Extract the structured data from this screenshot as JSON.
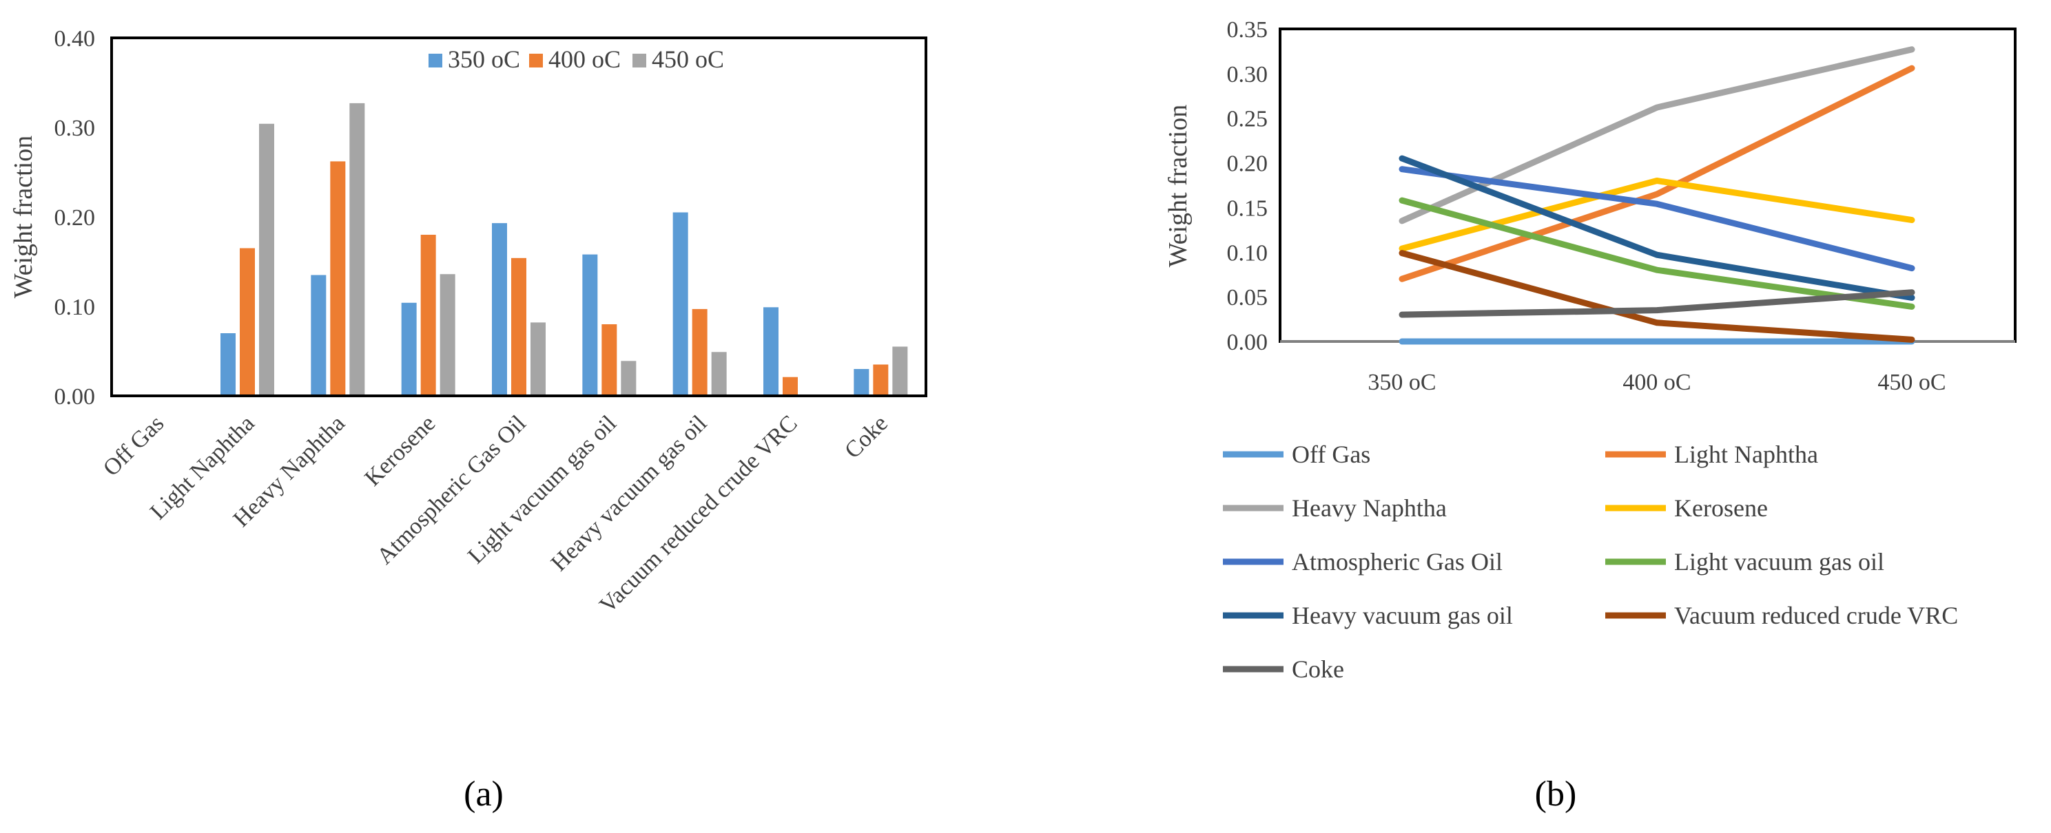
{
  "panel_labels": [
    "(a)",
    "(b)"
  ],
  "chart_data": [
    {
      "type": "bar",
      "panel": "(a)",
      "title": "",
      "xlabel": "",
      "ylabel": "Weight fraction",
      "ylim": [
        0,
        0.4
      ],
      "yticks": [
        "0.00",
        "0.10",
        "0.20",
        "0.30",
        "0.40"
      ],
      "legend_position": "top",
      "categories": [
        "Off Gas",
        "Light Naphtha",
        "Heavy Naphtha",
        "Kerosene",
        "Atmospheric Gas Oil",
        "Light vacuum gas oil",
        "Heavy vacuum gas oil",
        "Vacuum reduced crude VRC",
        "Coke"
      ],
      "series": [
        {
          "name": "350 oC",
          "color": "#5b9bd5",
          "values": [
            0.0,
            0.07,
            0.135,
            0.104,
            0.193,
            0.158,
            0.205,
            0.099,
            0.03
          ]
        },
        {
          "name": "400 oC",
          "color": "#ed7d31",
          "values": [
            0.0,
            0.165,
            0.262,
            0.18,
            0.154,
            0.08,
            0.097,
            0.021,
            0.035
          ]
        },
        {
          "name": "450 oC",
          "color": "#a5a5a5",
          "values": [
            0.0,
            0.304,
            0.327,
            0.136,
            0.082,
            0.039,
            0.049,
            0.0,
            0.055
          ]
        }
      ]
    },
    {
      "type": "line",
      "panel": "(b)",
      "title": "",
      "xlabel": "",
      "ylabel": "Weight fraction",
      "ylim": [
        0,
        0.35
      ],
      "yticks": [
        "0.00",
        "0.05",
        "0.10",
        "0.15",
        "0.20",
        "0.25",
        "0.30",
        "0.35"
      ],
      "legend_position": "bottom",
      "categories": [
        "350 oC",
        "400 oC",
        "450 oC"
      ],
      "series": [
        {
          "name": "Off Gas",
          "color": "#5b9bd5",
          "values": [
            0.0,
            0.0,
            0.0
          ]
        },
        {
          "name": "Light Naphtha",
          "color": "#ed7d31",
          "values": [
            0.07,
            0.165,
            0.306
          ]
        },
        {
          "name": "Heavy Naphtha",
          "color": "#a5a5a5",
          "values": [
            0.135,
            0.262,
            0.327
          ]
        },
        {
          "name": "Kerosene",
          "color": "#ffc000",
          "values": [
            0.104,
            0.18,
            0.136
          ]
        },
        {
          "name": "Atmospheric Gas Oil",
          "color": "#4472c4",
          "values": [
            0.193,
            0.154,
            0.082
          ]
        },
        {
          "name": "Light vacuum gas oil",
          "color": "#70ad47",
          "values": [
            0.158,
            0.08,
            0.039
          ]
        },
        {
          "name": "Heavy vacuum gas oil",
          "color": "#255e91",
          "values": [
            0.205,
            0.097,
            0.049
          ]
        },
        {
          "name": "Vacuum reduced crude VRC",
          "color": "#9e480e",
          "values": [
            0.099,
            0.021,
            0.002
          ]
        },
        {
          "name": "Coke",
          "color": "#636363",
          "values": [
            0.03,
            0.035,
            0.055
          ]
        }
      ]
    }
  ]
}
